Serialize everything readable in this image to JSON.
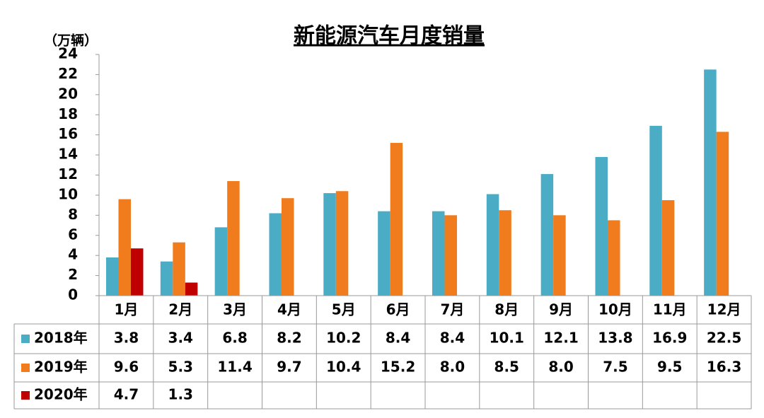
{
  "chart_data": {
    "type": "bar",
    "title": "新能源汽车月度销量",
    "y_label": "（万辆）",
    "categories": [
      "1月",
      "2月",
      "3月",
      "4月",
      "5月",
      "6月",
      "7月",
      "8月",
      "9月",
      "10月",
      "11月",
      "12月"
    ],
    "series": [
      {
        "name": "2018年",
        "color": "#4bacc6",
        "values": [
          3.8,
          3.4,
          6.8,
          8.2,
          10.2,
          8.4,
          8.4,
          10.1,
          12.1,
          13.8,
          16.9,
          22.5
        ]
      },
      {
        "name": "2019年",
        "color": "#f07c1e",
        "values": [
          9.6,
          5.3,
          11.4,
          9.7,
          10.4,
          15.2,
          8.0,
          8.5,
          8.0,
          7.5,
          9.5,
          16.3
        ],
        "value_labels": [
          "9.6",
          "5.3",
          "11.4",
          "9.7",
          "10.4",
          "15.2",
          "8.0",
          "8.5",
          "8.0",
          "7.5",
          "9.5",
          "16.3"
        ]
      },
      {
        "name": "2020年",
        "color": "#c00000",
        "values": [
          4.7,
          1.3,
          null,
          null,
          null,
          null,
          null,
          null,
          null,
          null,
          null,
          null
        ]
      }
    ],
    "ylim": [
      0,
      24
    ],
    "yticks": [
      0,
      2,
      4,
      6,
      8,
      10,
      12,
      14,
      16,
      18,
      20,
      22,
      24
    ],
    "grid": false
  }
}
